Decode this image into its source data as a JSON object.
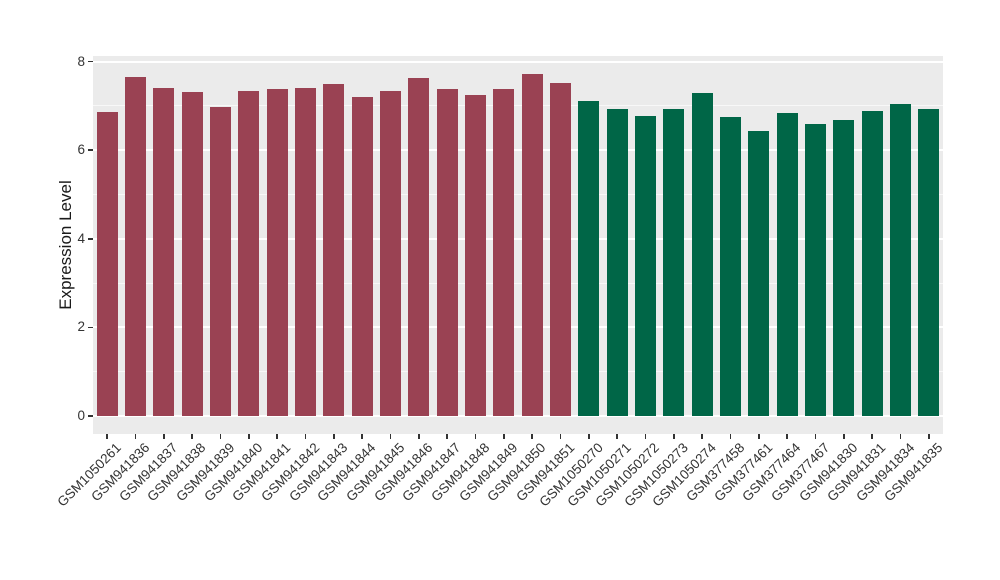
{
  "chart_data": {
    "type": "bar",
    "title": "",
    "xlabel": "",
    "ylabel": "Expression Level",
    "ylim": [
      0,
      8
    ],
    "yticks": [
      0,
      2,
      4,
      6,
      8
    ],
    "minor_gridlines": [
      1,
      3,
      5,
      7
    ],
    "grid": true,
    "legend_position": "none",
    "panel_bg": "#EBEBEB",
    "gridline_color": "#FFFFFF",
    "axis_text_color": "#333333",
    "groups": {
      "group1": "#9A4253",
      "group2": "#006647"
    },
    "categories": [
      "GSM1050261",
      "GSM941836",
      "GSM941837",
      "GSM941838",
      "GSM941839",
      "GSM941840",
      "GSM941841",
      "GSM941842",
      "GSM941843",
      "GSM941844",
      "GSM941845",
      "GSM941846",
      "GSM941847",
      "GSM941848",
      "GSM941849",
      "GSM941850",
      "GSM941851",
      "GSM1050270",
      "GSM1050271",
      "GSM1050272",
      "GSM1050273",
      "GSM1050274",
      "GSM377458",
      "GSM377461",
      "GSM377464",
      "GSM377467",
      "GSM941830",
      "GSM941831",
      "GSM941834",
      "GSM941835"
    ],
    "values": [
      6.87,
      7.66,
      7.41,
      7.32,
      6.98,
      7.34,
      7.39,
      7.4,
      7.5,
      7.2,
      7.33,
      7.64,
      7.38,
      7.24,
      7.38,
      7.72,
      7.51,
      7.12,
      6.92,
      6.77,
      6.92,
      7.3,
      6.75,
      6.43,
      6.83,
      6.6,
      6.68,
      6.88,
      7.04,
      6.93
    ],
    "bar_groups": [
      "group1",
      "group1",
      "group1",
      "group1",
      "group1",
      "group1",
      "group1",
      "group1",
      "group1",
      "group1",
      "group1",
      "group1",
      "group1",
      "group1",
      "group1",
      "group1",
      "group1",
      "group2",
      "group2",
      "group2",
      "group2",
      "group2",
      "group2",
      "group2",
      "group2",
      "group2",
      "group2",
      "group2",
      "group2",
      "group2"
    ]
  }
}
